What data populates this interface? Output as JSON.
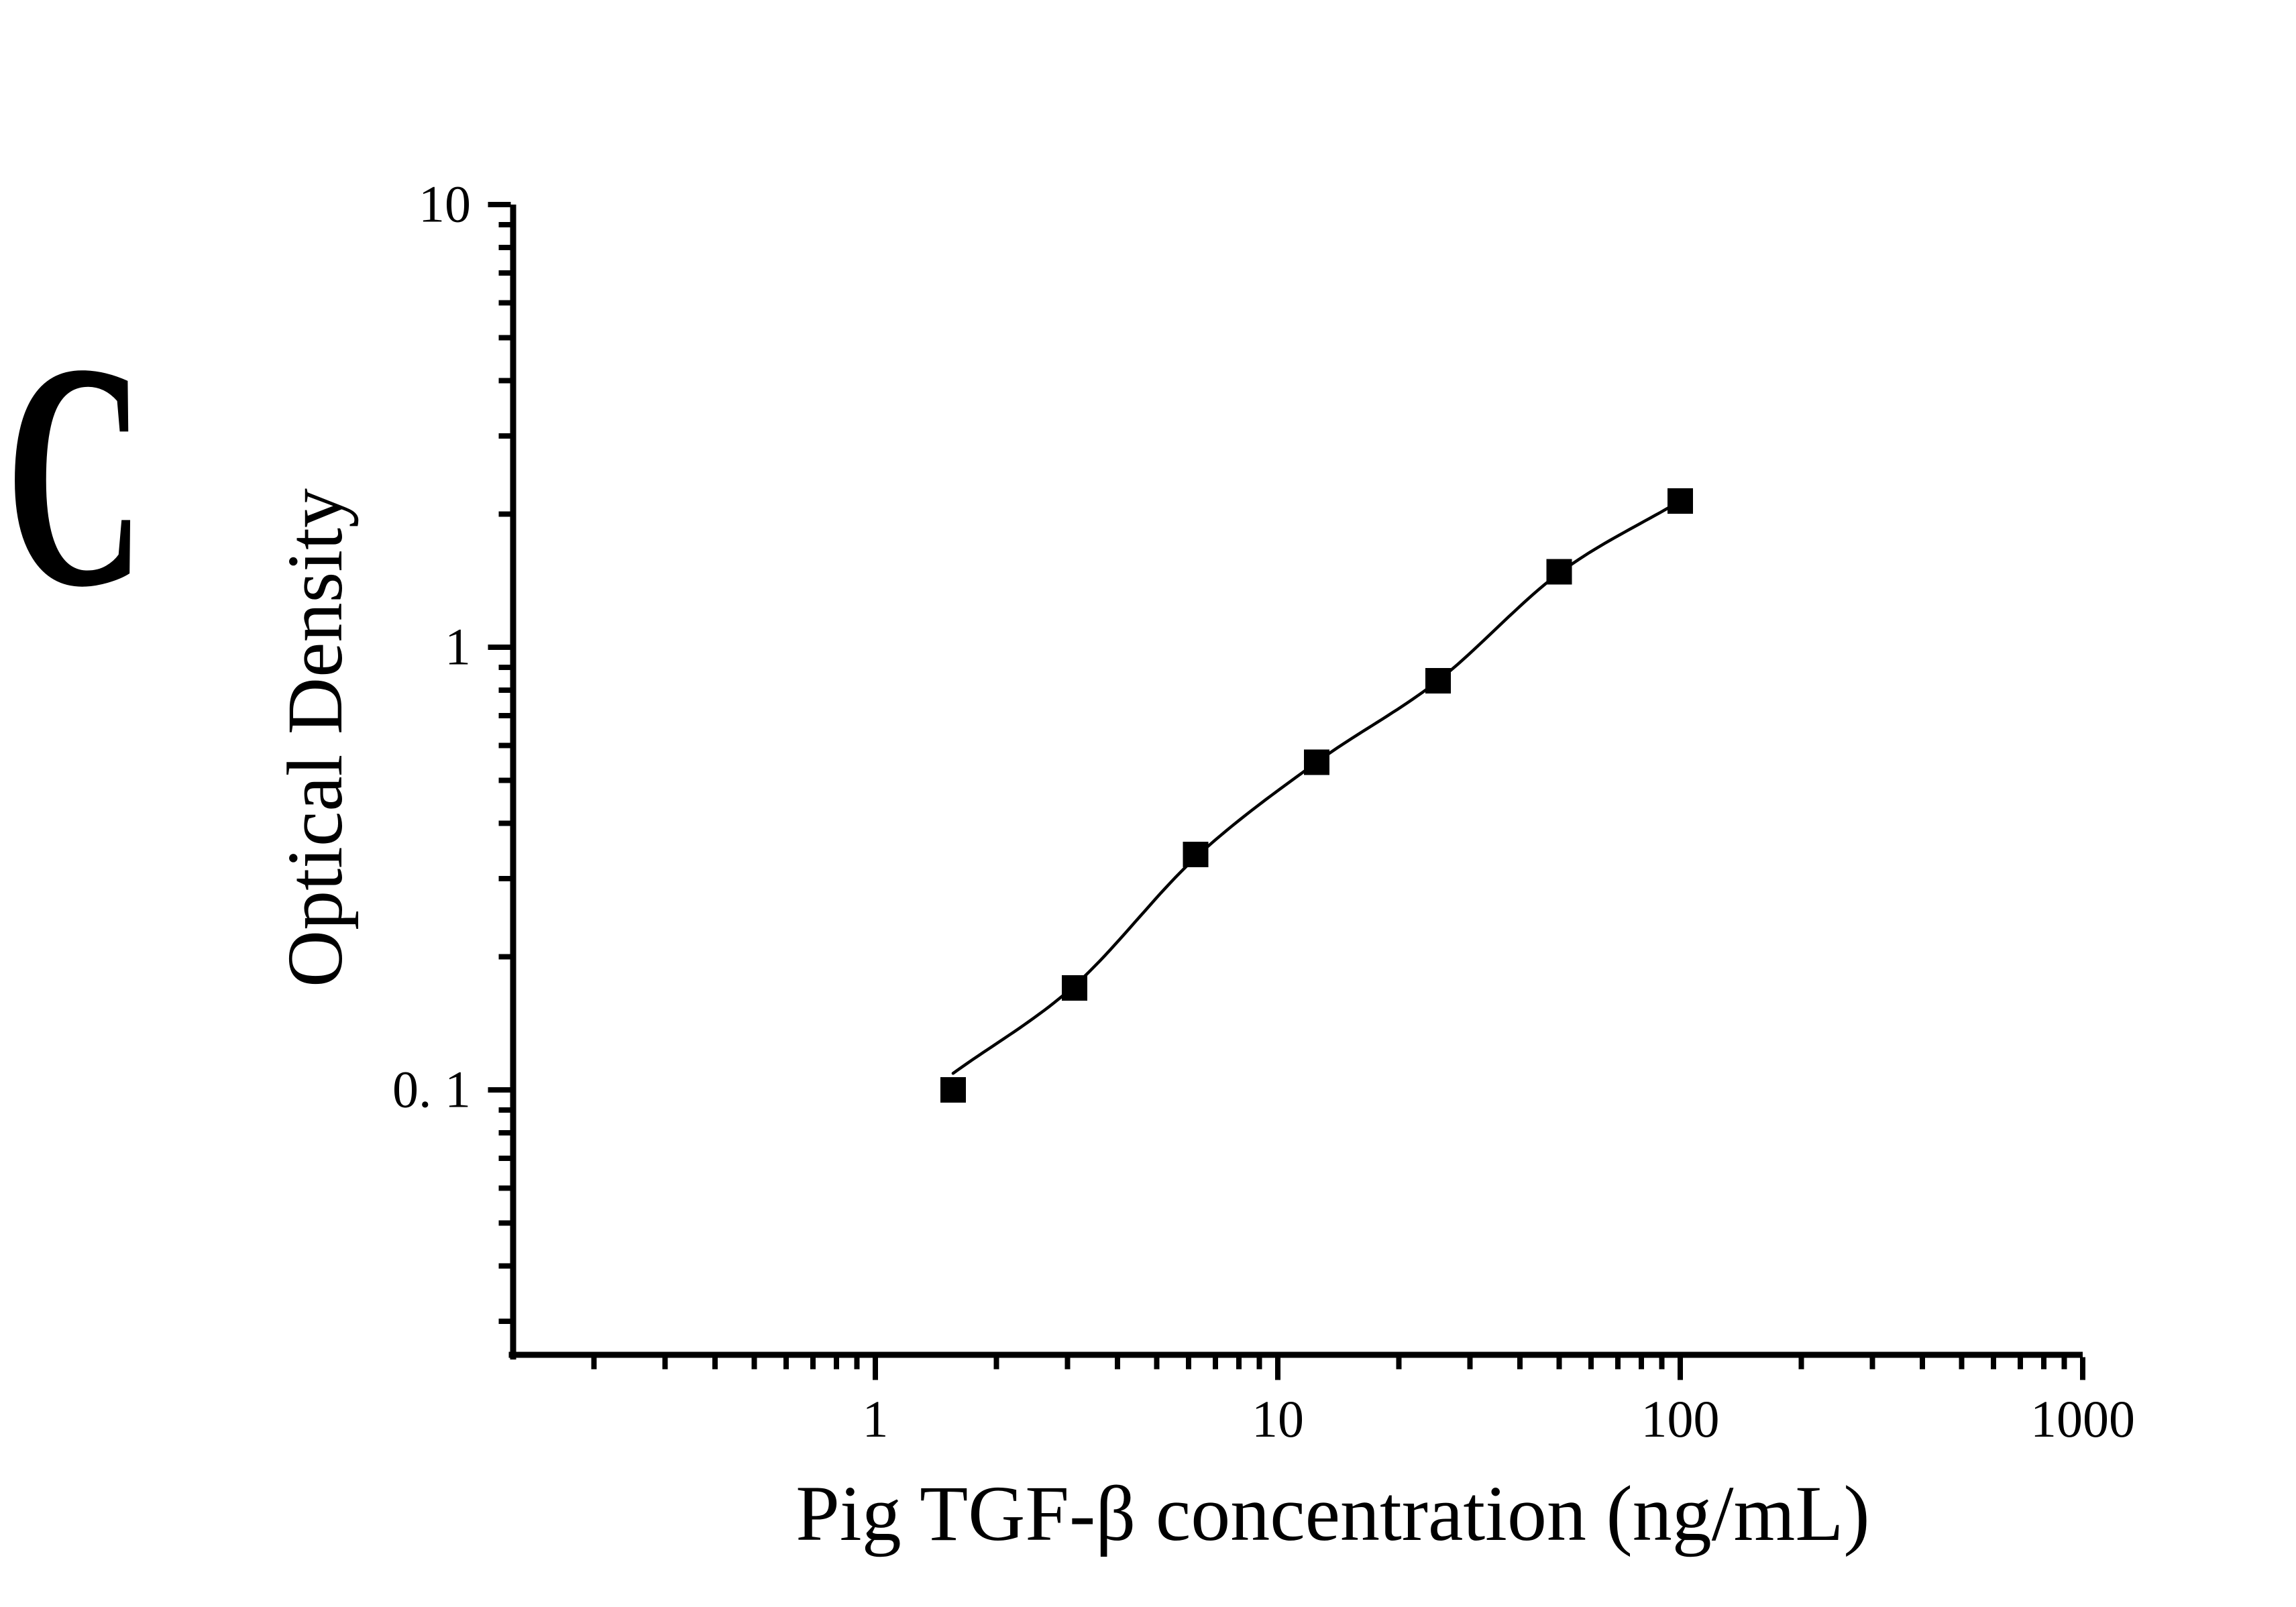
{
  "panel_label": "C",
  "chart_data": {
    "type": "scatter",
    "title": "",
    "xlabel": "Pig TGF-β concentration (ng/mL)",
    "ylabel": "Optical Density",
    "x_scale": "log",
    "y_scale": "log",
    "xlim": [
      0.125,
      1000
    ],
    "ylim": [
      0.025,
      10
    ],
    "x": [
      1.56,
      3.125,
      6.25,
      12.5,
      25,
      50,
      100
    ],
    "y": [
      0.1,
      0.17,
      0.34,
      0.55,
      0.84,
      1.48,
      2.14
    ],
    "fit_curve_y": [
      0.109,
      0.172,
      0.335,
      0.55,
      0.84,
      1.47,
      2.14
    ],
    "x_major_ticks": [
      1,
      10,
      100,
      1000
    ],
    "x_major_tick_labels": [
      "1",
      "10",
      "100",
      "1000"
    ],
    "y_major_ticks": [
      0.1,
      1,
      10
    ],
    "y_major_tick_labels": [
      "0. 1",
      "1",
      "10"
    ],
    "grid": false,
    "legend": false,
    "marker": "filled-square",
    "series_name": "standard-curve",
    "colors": {
      "background": "#ffffff",
      "axis": "#000000",
      "marker": "#000000",
      "curve": "#000000",
      "text": "#000000"
    }
  }
}
